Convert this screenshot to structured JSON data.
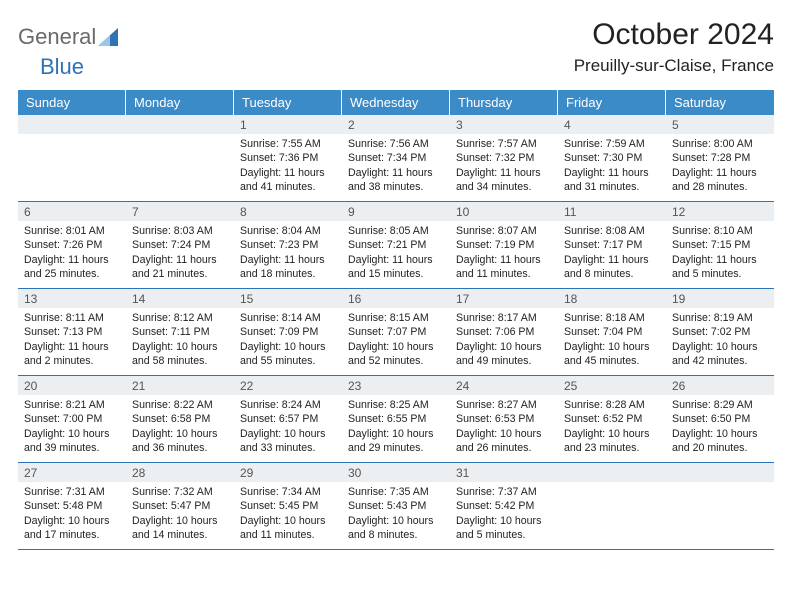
{
  "logo": {
    "text1": "General",
    "text2": "Blue"
  },
  "header": {
    "month_title": "October 2024",
    "location": "Preuilly-sur-Claise, France"
  },
  "colors": {
    "header_bg": "#3b8bc9",
    "header_text": "#ffffff",
    "daynum_bg": "#eceff1",
    "rule": "#2e74b5",
    "logo_gray": "#6a6a6a",
    "logo_blue": "#2e74b5"
  },
  "day_names": [
    "Sunday",
    "Monday",
    "Tuesday",
    "Wednesday",
    "Thursday",
    "Friday",
    "Saturday"
  ],
  "weeks": [
    [
      {
        "n": "",
        "sun": "",
        "set": "",
        "dl": ""
      },
      {
        "n": "",
        "sun": "",
        "set": "",
        "dl": ""
      },
      {
        "n": "1",
        "sun": "Sunrise: 7:55 AM",
        "set": "Sunset: 7:36 PM",
        "dl": "Daylight: 11 hours and 41 minutes."
      },
      {
        "n": "2",
        "sun": "Sunrise: 7:56 AM",
        "set": "Sunset: 7:34 PM",
        "dl": "Daylight: 11 hours and 38 minutes."
      },
      {
        "n": "3",
        "sun": "Sunrise: 7:57 AM",
        "set": "Sunset: 7:32 PM",
        "dl": "Daylight: 11 hours and 34 minutes."
      },
      {
        "n": "4",
        "sun": "Sunrise: 7:59 AM",
        "set": "Sunset: 7:30 PM",
        "dl": "Daylight: 11 hours and 31 minutes."
      },
      {
        "n": "5",
        "sun": "Sunrise: 8:00 AM",
        "set": "Sunset: 7:28 PM",
        "dl": "Daylight: 11 hours and 28 minutes."
      }
    ],
    [
      {
        "n": "6",
        "sun": "Sunrise: 8:01 AM",
        "set": "Sunset: 7:26 PM",
        "dl": "Daylight: 11 hours and 25 minutes."
      },
      {
        "n": "7",
        "sun": "Sunrise: 8:03 AM",
        "set": "Sunset: 7:24 PM",
        "dl": "Daylight: 11 hours and 21 minutes."
      },
      {
        "n": "8",
        "sun": "Sunrise: 8:04 AM",
        "set": "Sunset: 7:23 PM",
        "dl": "Daylight: 11 hours and 18 minutes."
      },
      {
        "n": "9",
        "sun": "Sunrise: 8:05 AM",
        "set": "Sunset: 7:21 PM",
        "dl": "Daylight: 11 hours and 15 minutes."
      },
      {
        "n": "10",
        "sun": "Sunrise: 8:07 AM",
        "set": "Sunset: 7:19 PM",
        "dl": "Daylight: 11 hours and 11 minutes."
      },
      {
        "n": "11",
        "sun": "Sunrise: 8:08 AM",
        "set": "Sunset: 7:17 PM",
        "dl": "Daylight: 11 hours and 8 minutes."
      },
      {
        "n": "12",
        "sun": "Sunrise: 8:10 AM",
        "set": "Sunset: 7:15 PM",
        "dl": "Daylight: 11 hours and 5 minutes."
      }
    ],
    [
      {
        "n": "13",
        "sun": "Sunrise: 8:11 AM",
        "set": "Sunset: 7:13 PM",
        "dl": "Daylight: 11 hours and 2 minutes."
      },
      {
        "n": "14",
        "sun": "Sunrise: 8:12 AM",
        "set": "Sunset: 7:11 PM",
        "dl": "Daylight: 10 hours and 58 minutes."
      },
      {
        "n": "15",
        "sun": "Sunrise: 8:14 AM",
        "set": "Sunset: 7:09 PM",
        "dl": "Daylight: 10 hours and 55 minutes."
      },
      {
        "n": "16",
        "sun": "Sunrise: 8:15 AM",
        "set": "Sunset: 7:07 PM",
        "dl": "Daylight: 10 hours and 52 minutes."
      },
      {
        "n": "17",
        "sun": "Sunrise: 8:17 AM",
        "set": "Sunset: 7:06 PM",
        "dl": "Daylight: 10 hours and 49 minutes."
      },
      {
        "n": "18",
        "sun": "Sunrise: 8:18 AM",
        "set": "Sunset: 7:04 PM",
        "dl": "Daylight: 10 hours and 45 minutes."
      },
      {
        "n": "19",
        "sun": "Sunrise: 8:19 AM",
        "set": "Sunset: 7:02 PM",
        "dl": "Daylight: 10 hours and 42 minutes."
      }
    ],
    [
      {
        "n": "20",
        "sun": "Sunrise: 8:21 AM",
        "set": "Sunset: 7:00 PM",
        "dl": "Daylight: 10 hours and 39 minutes."
      },
      {
        "n": "21",
        "sun": "Sunrise: 8:22 AM",
        "set": "Sunset: 6:58 PM",
        "dl": "Daylight: 10 hours and 36 minutes."
      },
      {
        "n": "22",
        "sun": "Sunrise: 8:24 AM",
        "set": "Sunset: 6:57 PM",
        "dl": "Daylight: 10 hours and 33 minutes."
      },
      {
        "n": "23",
        "sun": "Sunrise: 8:25 AM",
        "set": "Sunset: 6:55 PM",
        "dl": "Daylight: 10 hours and 29 minutes."
      },
      {
        "n": "24",
        "sun": "Sunrise: 8:27 AM",
        "set": "Sunset: 6:53 PM",
        "dl": "Daylight: 10 hours and 26 minutes."
      },
      {
        "n": "25",
        "sun": "Sunrise: 8:28 AM",
        "set": "Sunset: 6:52 PM",
        "dl": "Daylight: 10 hours and 23 minutes."
      },
      {
        "n": "26",
        "sun": "Sunrise: 8:29 AM",
        "set": "Sunset: 6:50 PM",
        "dl": "Daylight: 10 hours and 20 minutes."
      }
    ],
    [
      {
        "n": "27",
        "sun": "Sunrise: 7:31 AM",
        "set": "Sunset: 5:48 PM",
        "dl": "Daylight: 10 hours and 17 minutes."
      },
      {
        "n": "28",
        "sun": "Sunrise: 7:32 AM",
        "set": "Sunset: 5:47 PM",
        "dl": "Daylight: 10 hours and 14 minutes."
      },
      {
        "n": "29",
        "sun": "Sunrise: 7:34 AM",
        "set": "Sunset: 5:45 PM",
        "dl": "Daylight: 10 hours and 11 minutes."
      },
      {
        "n": "30",
        "sun": "Sunrise: 7:35 AM",
        "set": "Sunset: 5:43 PM",
        "dl": "Daylight: 10 hours and 8 minutes."
      },
      {
        "n": "31",
        "sun": "Sunrise: 7:37 AM",
        "set": "Sunset: 5:42 PM",
        "dl": "Daylight: 10 hours and 5 minutes."
      },
      {
        "n": "",
        "sun": "",
        "set": "",
        "dl": ""
      },
      {
        "n": "",
        "sun": "",
        "set": "",
        "dl": ""
      }
    ]
  ]
}
